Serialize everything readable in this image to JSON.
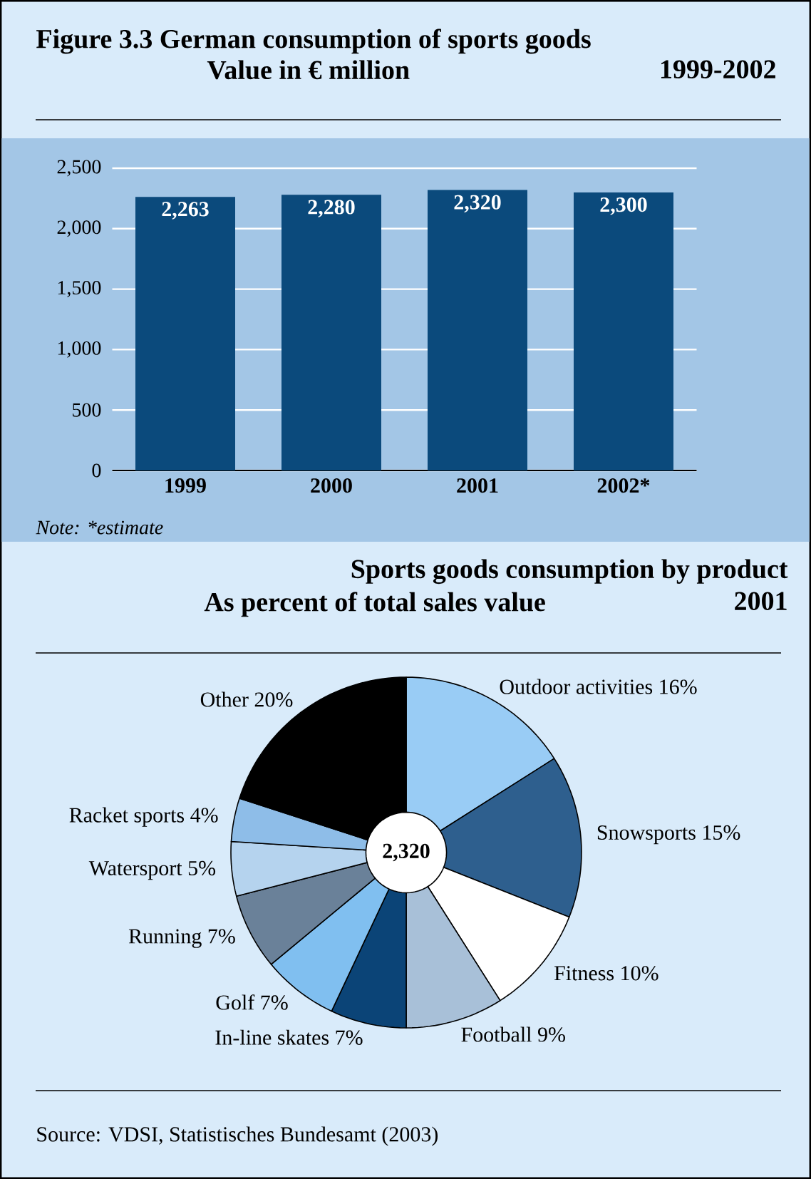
{
  "chart_data": [
    {
      "type": "bar",
      "title": "Figure 3.3  German consumption of sports goods",
      "subtitle": "Value in € million",
      "annotations": [
        "1999-2002",
        "Note: *estimate"
      ],
      "categories": [
        "1999",
        "2000",
        "2001",
        "2002*"
      ],
      "values": [
        2263,
        2280,
        2320,
        2300
      ],
      "color": "#0b4a7c",
      "ylim": [
        0,
        2500
      ],
      "yticks": [
        0,
        500,
        {
          "value": 1000,
          "label": "1,000"
        },
        {
          "value": 1500,
          "label": "1,500"
        },
        {
          "value": 2000,
          "label": "2,000"
        },
        {
          "value": 2500,
          "label": "2,500"
        }
      ],
      "grid": "y",
      "value_labels": [
        "2,263",
        "2,280",
        "2,320",
        "2,300"
      ]
    },
    {
      "type": "donut",
      "title": "Sports goods consumption by product",
      "subtitle": "As percent of total sales value",
      "annotations": [
        "2001",
        "2,320",
        "Source: VDSI, Statistisches Bundesamt (2003)"
      ],
      "categories": [
        "Outdoor activities",
        "Snowsports",
        "Fitness",
        "Football",
        "In-line skates",
        "Golf",
        "Running",
        "Watersport",
        "Racket sports",
        "Other"
      ],
      "values": [
        16,
        15,
        10,
        9,
        7,
        7,
        7,
        5,
        4,
        20
      ],
      "value_labels": [
        "16%",
        "15%",
        "10%",
        "9%",
        "7%",
        "7%",
        "7%",
        "5%",
        "4%",
        "20%"
      ],
      "colors": [
        "#99ccf5",
        "#2e5f8e",
        "#ffffff",
        "#a8c0d8",
        "#0b4477",
        "#80bff0",
        "#6a8199",
        "#b5d3ee",
        "#8ebde8",
        "#000000"
      ]
    }
  ]
}
